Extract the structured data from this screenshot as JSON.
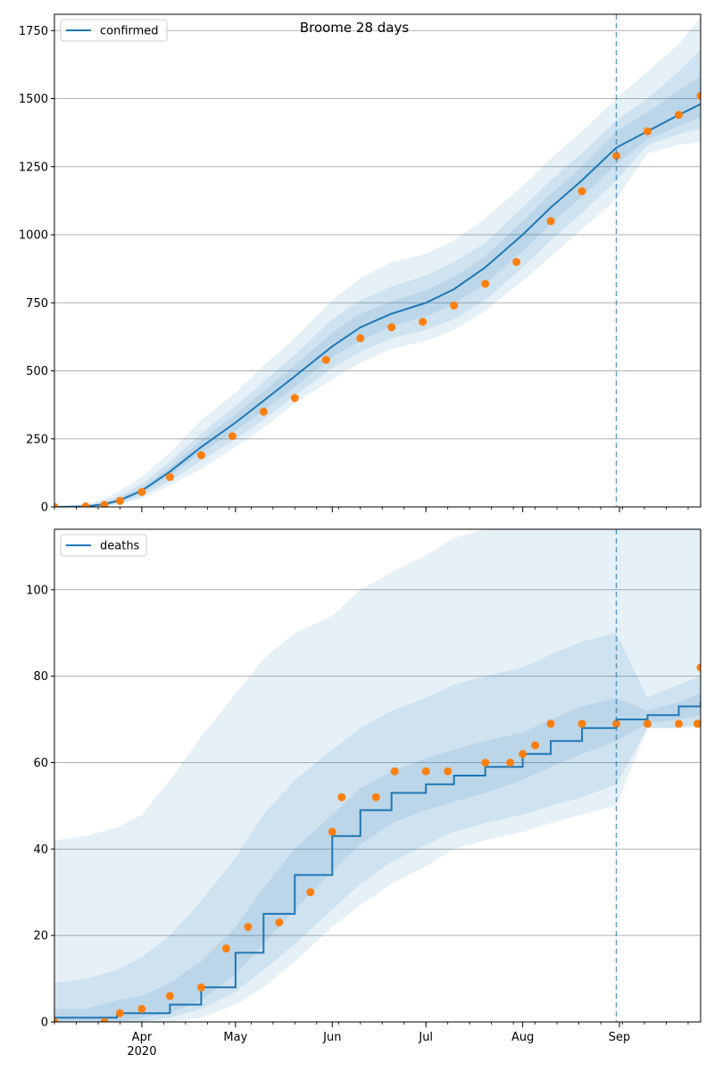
{
  "figure": {
    "title": "Broome 28 days"
  },
  "colors": {
    "model": "#1f77b4",
    "observed": "#ff7f0e",
    "band": "#1f77b4",
    "grid": "#b0b0b0"
  },
  "x_axis": {
    "ticks": [
      {
        "date": "2020-04-01",
        "label": "Apr"
      },
      {
        "date": "2020-05-01",
        "label": "May"
      },
      {
        "date": "2020-06-01",
        "label": "Jun"
      },
      {
        "date": "2020-07-01",
        "label": "Jul"
      },
      {
        "date": "2020-08-01",
        "label": "Aug"
      },
      {
        "date": "2020-09-01",
        "label": "Sep"
      }
    ],
    "year_label": "2020",
    "range": [
      "2020-03-04",
      "2020-09-27"
    ],
    "forecast_start": "2020-08-31"
  },
  "chart_data": [
    {
      "type": "line",
      "title": "Broome 28 days",
      "legend": {
        "label": "confirmed",
        "placement": "top-left"
      },
      "ylim": [
        0,
        1810
      ],
      "yticks": [
        0,
        250,
        500,
        750,
        1000,
        1250,
        1500,
        1750
      ],
      "grid": "y",
      "series": [
        {
          "name": "confirmed",
          "kind": "model",
          "x": [
            "2020-03-04",
            "2020-03-14",
            "2020-03-20",
            "2020-03-25",
            "2020-04-01",
            "2020-04-10",
            "2020-04-20",
            "2020-05-01",
            "2020-05-10",
            "2020-05-20",
            "2020-06-01",
            "2020-06-10",
            "2020-06-20",
            "2020-07-01",
            "2020-07-10",
            "2020-07-20",
            "2020-08-01",
            "2020-08-10",
            "2020-08-20",
            "2020-08-31",
            "2020-09-10",
            "2020-09-20",
            "2020-09-27"
          ],
          "y": [
            0,
            2,
            10,
            25,
            60,
            130,
            220,
            310,
            390,
            480,
            590,
            660,
            710,
            750,
            800,
            880,
            1000,
            1100,
            1200,
            1320,
            1380,
            1440,
            1480
          ]
        },
        {
          "name": "observed",
          "kind": "points",
          "x": [
            "2020-03-04",
            "2020-03-14",
            "2020-03-20",
            "2020-03-25",
            "2020-04-01",
            "2020-04-10",
            "2020-04-20",
            "2020-04-30",
            "2020-05-10",
            "2020-05-20",
            "2020-05-30",
            "2020-06-10",
            "2020-06-20",
            "2020-06-30",
            "2020-07-10",
            "2020-07-20",
            "2020-07-30",
            "2020-08-10",
            "2020-08-20",
            "2020-08-31",
            "2020-09-10",
            "2020-09-20",
            "2020-09-27"
          ],
          "y": [
            0,
            2,
            8,
            22,
            55,
            110,
            190,
            260,
            350,
            400,
            540,
            620,
            660,
            680,
            740,
            820,
            900,
            1050,
            1160,
            1290,
            1380,
            1440,
            1510
          ]
        }
      ],
      "bands": [
        {
          "upper": [
            0,
            8,
            30,
            60,
            110,
            200,
            320,
            420,
            520,
            620,
            760,
            840,
            900,
            930,
            980,
            1060,
            1180,
            1280,
            1380,
            1500,
            1600,
            1700,
            1800
          ],
          "lower": [
            0,
            0,
            2,
            10,
            30,
            80,
            140,
            220,
            290,
            380,
            470,
            530,
            580,
            610,
            650,
            720,
            830,
            920,
            1020,
            1130,
            1300,
            1330,
            1340
          ]
        },
        {
          "upper": [
            0,
            5,
            20,
            42,
            85,
            165,
            270,
            370,
            460,
            560,
            690,
            760,
            810,
            850,
            900,
            970,
            1100,
            1200,
            1300,
            1420,
            1500,
            1600,
            1680
          ],
          "lower": [
            0,
            0,
            4,
            14,
            40,
            95,
            170,
            250,
            320,
            410,
            510,
            570,
            620,
            650,
            690,
            760,
            880,
            980,
            1080,
            1200,
            1330,
            1370,
            1390
          ]
        },
        {
          "upper": [
            0,
            3,
            14,
            33,
            70,
            145,
            245,
            340,
            425,
            520,
            640,
            710,
            755,
            795,
            845,
            920,
            1050,
            1150,
            1250,
            1380,
            1450,
            1530,
            1580
          ],
          "lower": [
            0,
            1,
            6,
            18,
            50,
            115,
            200,
            280,
            355,
            440,
            550,
            610,
            665,
            700,
            745,
            820,
            940,
            1040,
            1140,
            1260,
            1350,
            1400,
            1430
          ]
        }
      ]
    },
    {
      "type": "line",
      "legend": {
        "label": "deaths",
        "placement": "top-left"
      },
      "ylim": [
        0,
        114
      ],
      "yticks": [
        0,
        20,
        40,
        60,
        80,
        100
      ],
      "grid": "y",
      "series": [
        {
          "name": "deaths",
          "kind": "model-step",
          "x": [
            "2020-03-04",
            "2020-03-14",
            "2020-03-24",
            "2020-04-01",
            "2020-04-10",
            "2020-04-20",
            "2020-05-01",
            "2020-05-10",
            "2020-05-20",
            "2020-06-01",
            "2020-06-10",
            "2020-06-20",
            "2020-07-01",
            "2020-07-10",
            "2020-07-20",
            "2020-08-01",
            "2020-08-10",
            "2020-08-20",
            "2020-08-31",
            "2020-09-10",
            "2020-09-20",
            "2020-09-27"
          ],
          "y": [
            1,
            1,
            2,
            2,
            4,
            8,
            16,
            25,
            34,
            43,
            49,
            53,
            55,
            57,
            59,
            62,
            65,
            68,
            70,
            71,
            73,
            74
          ]
        },
        {
          "name": "observed",
          "kind": "points",
          "x": [
            "2020-03-04",
            "2020-03-20",
            "2020-03-25",
            "2020-04-01",
            "2020-04-10",
            "2020-04-20",
            "2020-04-28",
            "2020-05-05",
            "2020-05-15",
            "2020-05-25",
            "2020-06-01",
            "2020-06-04",
            "2020-06-15",
            "2020-06-21",
            "2020-07-01",
            "2020-07-08",
            "2020-07-20",
            "2020-07-28",
            "2020-08-01",
            "2020-08-05",
            "2020-08-10",
            "2020-08-20",
            "2020-08-31",
            "2020-09-10",
            "2020-09-20",
            "2020-09-26",
            "2020-09-27"
          ],
          "y": [
            0,
            0,
            2,
            3,
            6,
            8,
            17,
            22,
            23,
            30,
            44,
            52,
            52,
            58,
            58,
            58,
            60,
            60,
            62,
            64,
            69,
            69,
            69,
            69,
            69,
            69,
            82
          ]
        }
      ],
      "bands": [
        {
          "upper": [
            42,
            43,
            45,
            48,
            56,
            66,
            76,
            84,
            90,
            94,
            100,
            104,
            108,
            112,
            114,
            114,
            114,
            114,
            114,
            114,
            114,
            114
          ],
          "lower": [
            0,
            0,
            0,
            0,
            0,
            1,
            4,
            8,
            14,
            22,
            27,
            32,
            36,
            40,
            42,
            44,
            46,
            48,
            50,
            68,
            68,
            68
          ]
        },
        {
          "upper": [
            9,
            10,
            12,
            15,
            20,
            28,
            38,
            48,
            56,
            63,
            68,
            72,
            75,
            78,
            80,
            82,
            85,
            88,
            90,
            75,
            78,
            80
          ],
          "lower": [
            0,
            0,
            0,
            0,
            1,
            3,
            7,
            12,
            18,
            26,
            32,
            37,
            41,
            44,
            46,
            48,
            50,
            52,
            55,
            68,
            68,
            69
          ]
        },
        {
          "upper": [
            3,
            3,
            5,
            6,
            9,
            14,
            22,
            31,
            40,
            48,
            54,
            58,
            61,
            63,
            65,
            67,
            70,
            73,
            75,
            72,
            74,
            76
          ],
          "lower": [
            0,
            0,
            0,
            1,
            2,
            5,
            11,
            18,
            26,
            35,
            41,
            46,
            49,
            51,
            53,
            56,
            59,
            62,
            65,
            69,
            70,
            71
          ]
        }
      ]
    }
  ]
}
